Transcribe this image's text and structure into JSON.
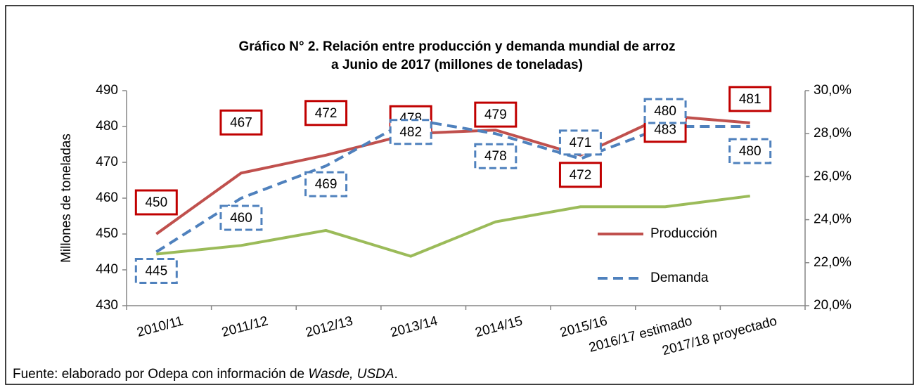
{
  "chart_data": {
    "type": "line",
    "title": [
      "Gráfico N° 2. Relación entre producción y demanda mundial de arroz",
      "a Junio de 2017 (millones de toneladas)"
    ],
    "ylabel": "Millones de toneladas",
    "categories": [
      "2010/11",
      "2011/12",
      "2012/13",
      "2013/14",
      "2014/15",
      "2015/16",
      "2016/17 estimado",
      "2017/18 proyectado"
    ],
    "series": [
      {
        "name": "Producción",
        "color": "#c0504d",
        "dash": false,
        "label_color": "#c00000",
        "values": [
          450,
          467,
          472,
          478,
          479,
          472,
          483,
          481
        ]
      },
      {
        "name": "Demanda",
        "color": "#4f81bd",
        "dash": true,
        "label_color": "#4f81bd",
        "values": [
          445,
          460,
          469,
          482,
          478,
          471,
          480,
          480
        ]
      },
      {
        "color": "#9bbb59",
        "dash": false,
        "axis": "y2",
        "values": [
          22.4,
          22.8,
          23.5,
          22.3,
          23.9,
          24.6,
          24.6,
          25.1
        ]
      }
    ],
    "ylim": [
      430,
      490
    ],
    "yticks": [
      430,
      440,
      450,
      460,
      470,
      480,
      490
    ],
    "y2lim": [
      20,
      30
    ],
    "y2ticks": [
      {
        "value": 20,
        "label": "20,0%"
      },
      {
        "value": 22,
        "label": "22,0%"
      },
      {
        "value": 24,
        "label": "24,0%"
      },
      {
        "value": 26,
        "label": "26,0%"
      },
      {
        "value": 28,
        "label": "28,0%"
      },
      {
        "value": 30,
        "label": "30,0%"
      }
    ],
    "grid": false,
    "legend": "right",
    "source": {
      "text": "Fuente: elaborado por Odepa con información de ",
      "italic": "Wasde, USDA",
      "end": "."
    }
  }
}
